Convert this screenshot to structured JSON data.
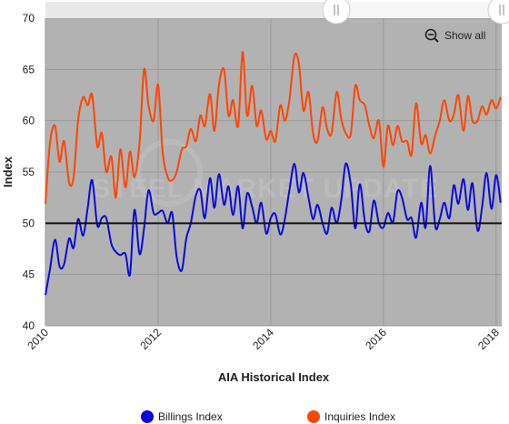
{
  "chart_data": {
    "type": "line",
    "title": "",
    "xlabel": "AIA Historical Index",
    "ylabel": "Index",
    "xlim": [
      2010,
      2018.1
    ],
    "ylim": [
      40,
      70
    ],
    "x_ticks": [
      "2010",
      "2012",
      "2014",
      "2016",
      "2018"
    ],
    "y_ticks": [
      "40",
      "45",
      "50",
      "55",
      "60",
      "65",
      "70"
    ],
    "reference_line": 50,
    "grid": true,
    "legend_position": "bottom-center",
    "watermark": "STEEL MARKET UPDATE",
    "zoom_button": "Show all",
    "series": [
      {
        "name": "Billings Index",
        "color": "#0a0ad8",
        "points": [
          [
            2010.0,
            43.0
          ],
          [
            2010.08,
            45.5
          ],
          [
            2010.17,
            48.4
          ],
          [
            2010.25,
            45.8
          ],
          [
            2010.33,
            46.0
          ],
          [
            2010.42,
            48.5
          ],
          [
            2010.5,
            47.6
          ],
          [
            2010.58,
            50.4
          ],
          [
            2010.67,
            48.8
          ],
          [
            2010.75,
            51.5
          ],
          [
            2010.83,
            54.2
          ],
          [
            2010.92,
            49.8
          ],
          [
            2011.0,
            50.5
          ],
          [
            2011.08,
            50.5
          ],
          [
            2011.17,
            48.0
          ],
          [
            2011.25,
            47.2
          ],
          [
            2011.33,
            46.9
          ],
          [
            2011.42,
            47.0
          ],
          [
            2011.5,
            45.0
          ],
          [
            2011.58,
            51.3
          ],
          [
            2011.67,
            47.0
          ],
          [
            2011.75,
            49.5
          ],
          [
            2011.83,
            53.2
          ],
          [
            2011.92,
            51.0
          ],
          [
            2012.0,
            51.0
          ],
          [
            2012.08,
            51.2
          ],
          [
            2012.17,
            50.0
          ],
          [
            2012.25,
            51.0
          ],
          [
            2012.33,
            46.7
          ],
          [
            2012.42,
            45.4
          ],
          [
            2012.5,
            48.5
          ],
          [
            2012.58,
            50.0
          ],
          [
            2012.67,
            52.7
          ],
          [
            2012.75,
            53.2
          ],
          [
            2012.83,
            50.5
          ],
          [
            2012.92,
            54.4
          ],
          [
            2013.0,
            51.5
          ],
          [
            2013.08,
            54.8
          ],
          [
            2013.17,
            51.8
          ],
          [
            2013.25,
            53.6
          ],
          [
            2013.33,
            50.8
          ],
          [
            2013.42,
            53.6
          ],
          [
            2013.5,
            49.5
          ],
          [
            2013.58,
            52.9
          ],
          [
            2013.67,
            51.6
          ],
          [
            2013.75,
            50.0
          ],
          [
            2013.83,
            52.0
          ],
          [
            2013.92,
            49.0
          ],
          [
            2014.0,
            50.5
          ],
          [
            2014.08,
            50.9
          ],
          [
            2014.17,
            48.9
          ],
          [
            2014.25,
            50.4
          ],
          [
            2014.33,
            53.2
          ],
          [
            2014.42,
            55.8
          ],
          [
            2014.5,
            53.0
          ],
          [
            2014.58,
            54.9
          ],
          [
            2014.67,
            52.5
          ],
          [
            2014.75,
            50.4
          ],
          [
            2014.83,
            51.8
          ],
          [
            2014.92,
            50.0
          ],
          [
            2015.0,
            49.0
          ],
          [
            2015.08,
            51.5
          ],
          [
            2015.17,
            50.0
          ],
          [
            2015.25,
            52.2
          ],
          [
            2015.33,
            55.8
          ],
          [
            2015.42,
            53.8
          ],
          [
            2015.5,
            49.5
          ],
          [
            2015.58,
            53.8
          ],
          [
            2015.67,
            50.2
          ],
          [
            2015.75,
            49.2
          ],
          [
            2015.83,
            52.2
          ],
          [
            2015.92,
            50.0
          ],
          [
            2016.0,
            49.6
          ],
          [
            2016.08,
            51.0
          ],
          [
            2016.17,
            50.1
          ],
          [
            2016.25,
            53.1
          ],
          [
            2016.33,
            52.5
          ],
          [
            2016.42,
            50.4
          ],
          [
            2016.5,
            50.5
          ],
          [
            2016.58,
            48.6
          ],
          [
            2016.67,
            52.0
          ],
          [
            2016.75,
            49.6
          ],
          [
            2016.83,
            55.6
          ],
          [
            2016.92,
            49.7
          ],
          [
            2017.0,
            50.4
          ],
          [
            2017.08,
            52.0
          ],
          [
            2017.17,
            50.5
          ],
          [
            2017.25,
            53.7
          ],
          [
            2017.33,
            51.9
          ],
          [
            2017.42,
            54.3
          ],
          [
            2017.5,
            51.3
          ],
          [
            2017.58,
            53.9
          ],
          [
            2017.67,
            49.3
          ],
          [
            2017.75,
            51.5
          ],
          [
            2017.83,
            54.9
          ],
          [
            2017.92,
            51.4
          ],
          [
            2018.0,
            54.7
          ],
          [
            2018.08,
            52.0
          ]
        ]
      },
      {
        "name": "Inquiries Index",
        "color": "#ff4500",
        "points": [
          [
            2010.0,
            51.9
          ],
          [
            2010.08,
            57.8
          ],
          [
            2010.17,
            59.5
          ],
          [
            2010.25,
            56.0
          ],
          [
            2010.33,
            58.0
          ],
          [
            2010.42,
            54.0
          ],
          [
            2010.5,
            54.5
          ],
          [
            2010.58,
            60.0
          ],
          [
            2010.67,
            62.3
          ],
          [
            2010.75,
            61.5
          ],
          [
            2010.83,
            62.5
          ],
          [
            2010.92,
            57.5
          ],
          [
            2011.0,
            58.8
          ],
          [
            2011.08,
            55.0
          ],
          [
            2011.17,
            56.5
          ],
          [
            2011.25,
            52.5
          ],
          [
            2011.33,
            57.2
          ],
          [
            2011.42,
            53.5
          ],
          [
            2011.5,
            57.0
          ],
          [
            2011.58,
            54.5
          ],
          [
            2011.67,
            57.8
          ],
          [
            2011.75,
            65.0
          ],
          [
            2011.83,
            61.5
          ],
          [
            2011.92,
            60.0
          ],
          [
            2012.0,
            63.5
          ],
          [
            2012.08,
            57.0
          ],
          [
            2012.17,
            54.5
          ],
          [
            2012.25,
            54.2
          ],
          [
            2012.33,
            55.0
          ],
          [
            2012.42,
            57.2
          ],
          [
            2012.5,
            57.5
          ],
          [
            2012.58,
            59.2
          ],
          [
            2012.67,
            58.0
          ],
          [
            2012.75,
            60.5
          ],
          [
            2012.83,
            59.5
          ],
          [
            2012.92,
            62.6
          ],
          [
            2013.0,
            59.0
          ],
          [
            2013.08,
            63.5
          ],
          [
            2013.17,
            65.0
          ],
          [
            2013.25,
            60.5
          ],
          [
            2013.33,
            62.0
          ],
          [
            2013.42,
            59.5
          ],
          [
            2013.5,
            66.7
          ],
          [
            2013.58,
            60.5
          ],
          [
            2013.67,
            63.4
          ],
          [
            2013.75,
            59.5
          ],
          [
            2013.83,
            61.0
          ],
          [
            2013.92,
            58.2
          ],
          [
            2014.0,
            59.0
          ],
          [
            2014.08,
            58.0
          ],
          [
            2014.17,
            61.5
          ],
          [
            2014.25,
            60.0
          ],
          [
            2014.33,
            62.0
          ],
          [
            2014.42,
            66.3
          ],
          [
            2014.5,
            65.5
          ],
          [
            2014.58,
            61.0
          ],
          [
            2014.67,
            62.8
          ],
          [
            2014.75,
            58.8
          ],
          [
            2014.83,
            58.0
          ],
          [
            2014.92,
            61.3
          ],
          [
            2015.0,
            59.2
          ],
          [
            2015.08,
            58.8
          ],
          [
            2015.17,
            62.8
          ],
          [
            2015.25,
            60.2
          ],
          [
            2015.33,
            58.8
          ],
          [
            2015.42,
            58.7
          ],
          [
            2015.5,
            63.4
          ],
          [
            2015.58,
            62.0
          ],
          [
            2015.67,
            61.5
          ],
          [
            2015.75,
            59.5
          ],
          [
            2015.83,
            58.3
          ],
          [
            2015.92,
            60.0
          ],
          [
            2016.0,
            55.5
          ],
          [
            2016.08,
            59.5
          ],
          [
            2016.17,
            57.6
          ],
          [
            2016.25,
            59.5
          ],
          [
            2016.33,
            58.0
          ],
          [
            2016.42,
            58.0
          ],
          [
            2016.5,
            56.7
          ],
          [
            2016.58,
            61.7
          ],
          [
            2016.67,
            57.8
          ],
          [
            2016.75,
            58.6
          ],
          [
            2016.83,
            56.8
          ],
          [
            2016.92,
            58.6
          ],
          [
            2017.0,
            60.0
          ],
          [
            2017.08,
            62.0
          ],
          [
            2017.17,
            60.0
          ],
          [
            2017.25,
            60.6
          ],
          [
            2017.33,
            62.5
          ],
          [
            2017.42,
            59.0
          ],
          [
            2017.5,
            62.4
          ],
          [
            2017.58,
            60.0
          ],
          [
            2017.67,
            60.0
          ],
          [
            2017.75,
            61.4
          ],
          [
            2017.83,
            60.6
          ],
          [
            2017.92,
            62.0
          ],
          [
            2018.0,
            61.2
          ],
          [
            2018.08,
            62.3
          ]
        ]
      }
    ]
  }
}
